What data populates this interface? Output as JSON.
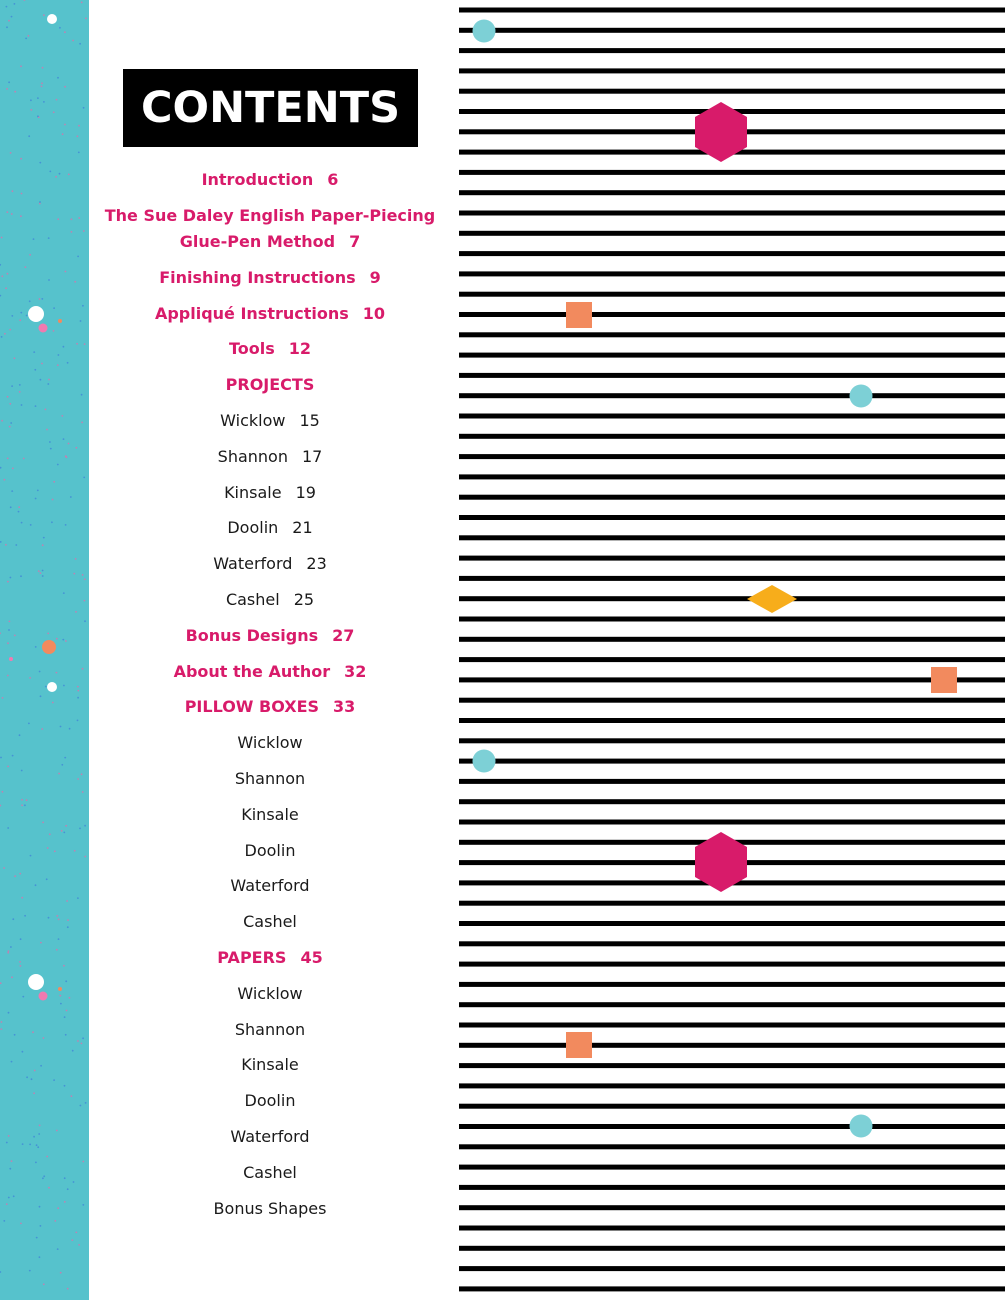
{
  "title": "CONTENTS",
  "colors": {
    "sidebar": "#56c2cc",
    "section_heading": "#d81b6a",
    "stripes": "#000000",
    "teal_dot": "#7dd0d6",
    "magenta_hexagon": "#d81b6a",
    "orange_square": "#f28a5e",
    "yellow_diamond": "#f7ad1b"
  },
  "toc": [
    {
      "label": "Introduction",
      "page": "6",
      "style": "section"
    },
    {
      "label": "The Sue Daley English Paper-Piecing Glue-Pen Method",
      "page": "7",
      "style": "section"
    },
    {
      "label": "Finishing Instructions",
      "page": "9",
      "style": "section"
    },
    {
      "label": "Appliqué Instructions",
      "page": "10",
      "style": "section"
    },
    {
      "label": "Tools",
      "page": "12",
      "style": "section"
    },
    {
      "label": "PROJECTS",
      "page": "",
      "style": "section"
    },
    {
      "label": "Wicklow",
      "page": "15",
      "style": "item"
    },
    {
      "label": "Shannon",
      "page": "17",
      "style": "item"
    },
    {
      "label": "Kinsale",
      "page": "19",
      "style": "item"
    },
    {
      "label": "Doolin",
      "page": "21",
      "style": "item"
    },
    {
      "label": "Waterford",
      "page": "23",
      "style": "item"
    },
    {
      "label": "Cashel",
      "page": "25",
      "style": "item"
    },
    {
      "label": "Bonus Designs",
      "page": "27",
      "style": "section"
    },
    {
      "label": "About the Author",
      "page": "32",
      "style": "section"
    },
    {
      "label": "PILLOW BOXES",
      "page": "33",
      "style": "section"
    },
    {
      "label": "Wicklow",
      "page": "",
      "style": "item"
    },
    {
      "label": "Shannon",
      "page": "",
      "style": "item"
    },
    {
      "label": "Kinsale",
      "page": "",
      "style": "item"
    },
    {
      "label": "Doolin",
      "page": "",
      "style": "item"
    },
    {
      "label": "Waterford",
      "page": "",
      "style": "item"
    },
    {
      "label": "Cashel",
      "page": "",
      "style": "item"
    },
    {
      "label": "PAPERS",
      "page": "45",
      "style": "section"
    },
    {
      "label": "Wicklow",
      "page": "",
      "style": "item"
    },
    {
      "label": "Shannon",
      "page": "",
      "style": "item"
    },
    {
      "label": "Kinsale",
      "page": "",
      "style": "item"
    },
    {
      "label": "Doolin",
      "page": "",
      "style": "item"
    },
    {
      "label": "Waterford",
      "page": "",
      "style": "item"
    },
    {
      "label": "Cashel",
      "page": "",
      "style": "item"
    },
    {
      "label": "Bonus Shapes",
      "page": "",
      "style": "item"
    }
  ]
}
